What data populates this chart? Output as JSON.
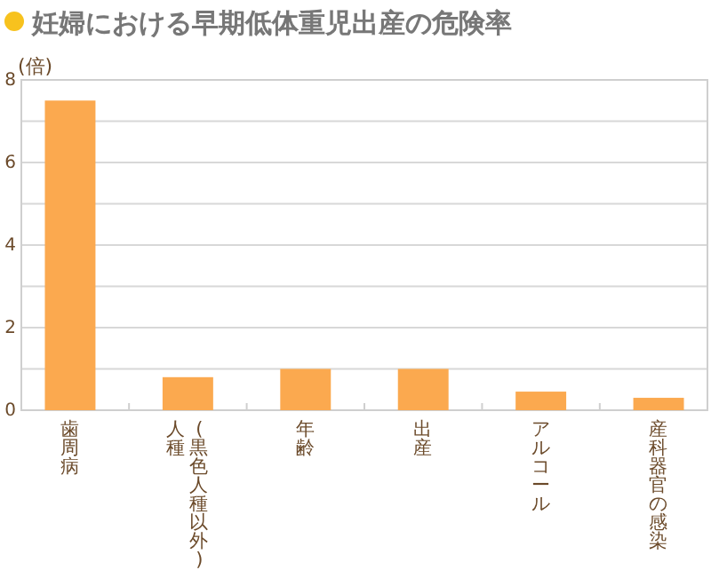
{
  "chart_data": {
    "type": "bar",
    "title": "妊婦における早期低体重児出産の危険率",
    "ylabel": "(倍)",
    "categories": [
      "歯周病",
      "人種(黒色人種以外)",
      "年齢",
      "出産",
      "アルコール",
      "産科器官の感染"
    ],
    "values": [
      7.5,
      0.8,
      1.0,
      1.0,
      0.45,
      0.3
    ],
    "color": "#fba94f",
    "ylim": [
      0,
      8
    ],
    "yticks": [
      0,
      {
        "value": 1,
        "label": null
      },
      2,
      {
        "value": 3,
        "label": null
      },
      4,
      {
        "value": 5,
        "label": null
      },
      6,
      {
        "value": 7,
        "label": null
      },
      8
    ],
    "grid": "y"
  }
}
